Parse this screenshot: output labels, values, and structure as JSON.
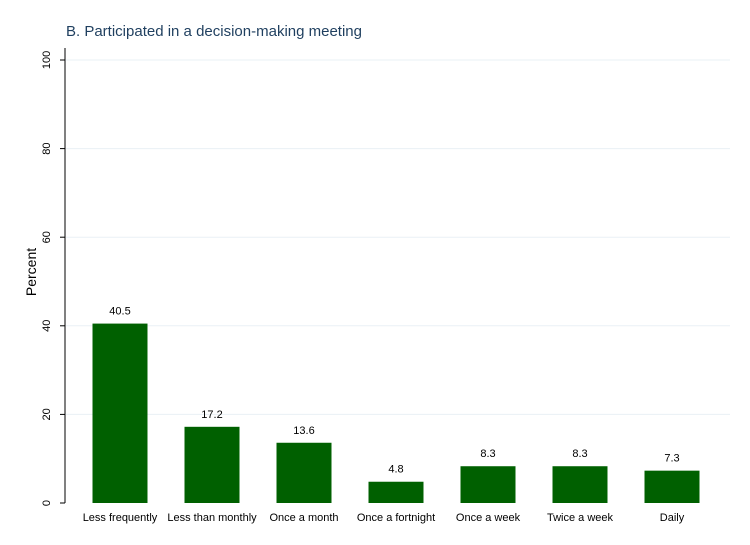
{
  "chart_data": {
    "type": "bar",
    "title": "B. Participated in a decision-making meeting",
    "xlabel": "",
    "ylabel": "Percent",
    "ylim": [
      0,
      100
    ],
    "yticks": [
      0,
      20,
      40,
      60,
      80,
      100
    ],
    "grid": true,
    "categories": [
      "Less frequently",
      "Less than monthly",
      "Once a month",
      "Once a fortnight",
      "Once a week",
      "Twice a week",
      "Daily"
    ],
    "values": [
      40.5,
      17.2,
      13.6,
      4.8,
      8.3,
      8.3,
      7.3
    ],
    "value_labels": [
      "40.5",
      "17.2",
      "13.6",
      "4.8",
      "8.3",
      "8.3",
      "7.3"
    ],
    "bar_color": "#006000"
  }
}
